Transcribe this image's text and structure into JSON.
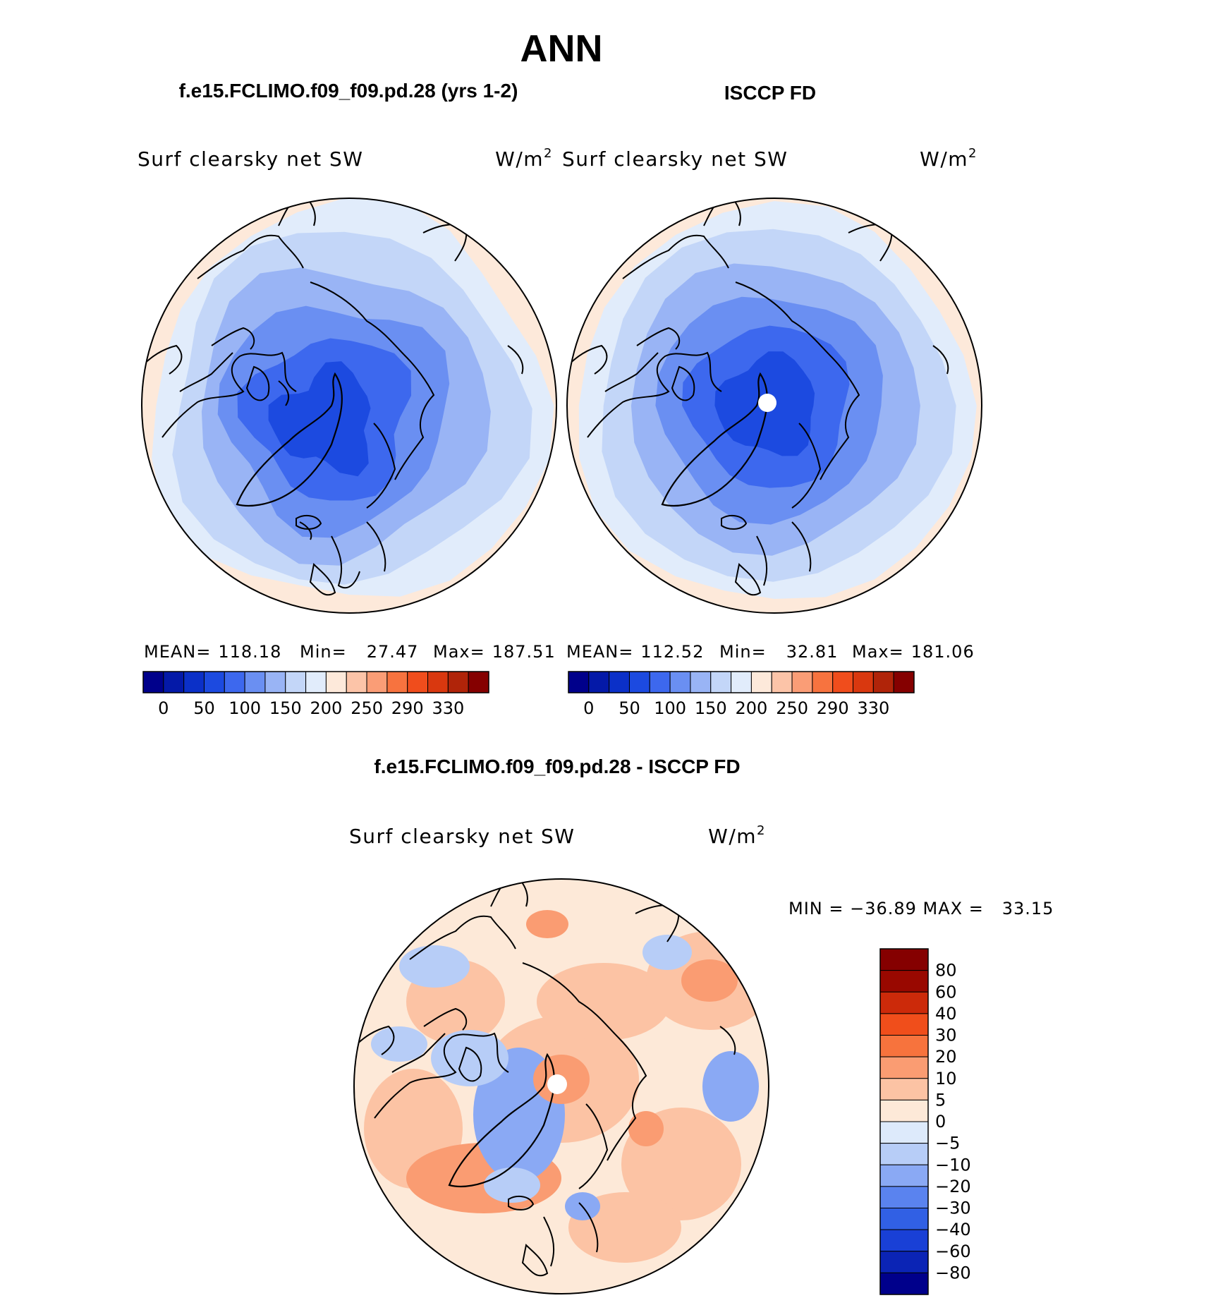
{
  "page_title": "ANN",
  "palette": {
    "abs": [
      "#00008b",
      "#0419a8",
      "#0b30c8",
      "#1c4ae0",
      "#3d68ee",
      "#6a8ff2",
      "#99b4f5",
      "#c3d6f8",
      "#e1ecfb",
      "#fde9da",
      "#fcc4a8",
      "#fa9d76",
      "#f7733f",
      "#f04d1c",
      "#d9380f",
      "#b02409",
      "#850000"
    ],
    "diff": [
      "#00008b",
      "#0b24b5",
      "#1940d6",
      "#3160e4",
      "#5a83ef",
      "#8aa9f4",
      "#b7cdf7",
      "#ddeafb",
      "#fde9d8",
      "#fcc3a4",
      "#fa9c72",
      "#f7733d",
      "#f04e1b",
      "#cc2a0a",
      "#990800",
      "#850000"
    ],
    "coastline": "#000000"
  },
  "panels": [
    {
      "title": "f.e15.FCLIMO.f09_f09.pd.28 (yrs 1-2)",
      "variable": "Surf clearsky net SW",
      "units": "W/m",
      "units_sup": "2",
      "stats": {
        "mean_label": "MEAN=",
        "mean": "118.18",
        "min_label": "Min=",
        "min": "27.47",
        "max_label": "Max=",
        "max": "187.51"
      },
      "ticks": [
        "0",
        "50",
        "100",
        "150",
        "200",
        "250",
        "290",
        "330"
      ],
      "bands": [
        8,
        7,
        6,
        5,
        4,
        3
      ],
      "pole_missing": false
    },
    {
      "title": "ISCCP FD",
      "variable": "Surf clearsky net SW",
      "units": "W/m",
      "units_sup": "2",
      "stats": {
        "mean_label": "MEAN=",
        "mean": "112.52",
        "min_label": "Min=",
        "min": "32.81",
        "max_label": "Max=",
        "max": "181.06"
      },
      "ticks": [
        "0",
        "50",
        "100",
        "150",
        "200",
        "250",
        "290",
        "330"
      ],
      "bands": [
        8,
        7,
        6,
        5,
        4,
        3
      ],
      "pole_missing": true
    }
  ],
  "diff_panel": {
    "title": "f.e15.FCLIMO.f09_f09.pd.28 - ISCCP FD",
    "variable": "Surf clearsky net SW",
    "units": "W/m",
    "units_sup": "2",
    "minmax": "MIN = −36.89 MAX =   33.15",
    "ticks": [
      "80",
      "60",
      "40",
      "30",
      "20",
      "10",
      "5",
      "0",
      "−5",
      "−10",
      "−20",
      "−30",
      "−40",
      "−60",
      "−80"
    ],
    "pole_missing": true
  }
}
